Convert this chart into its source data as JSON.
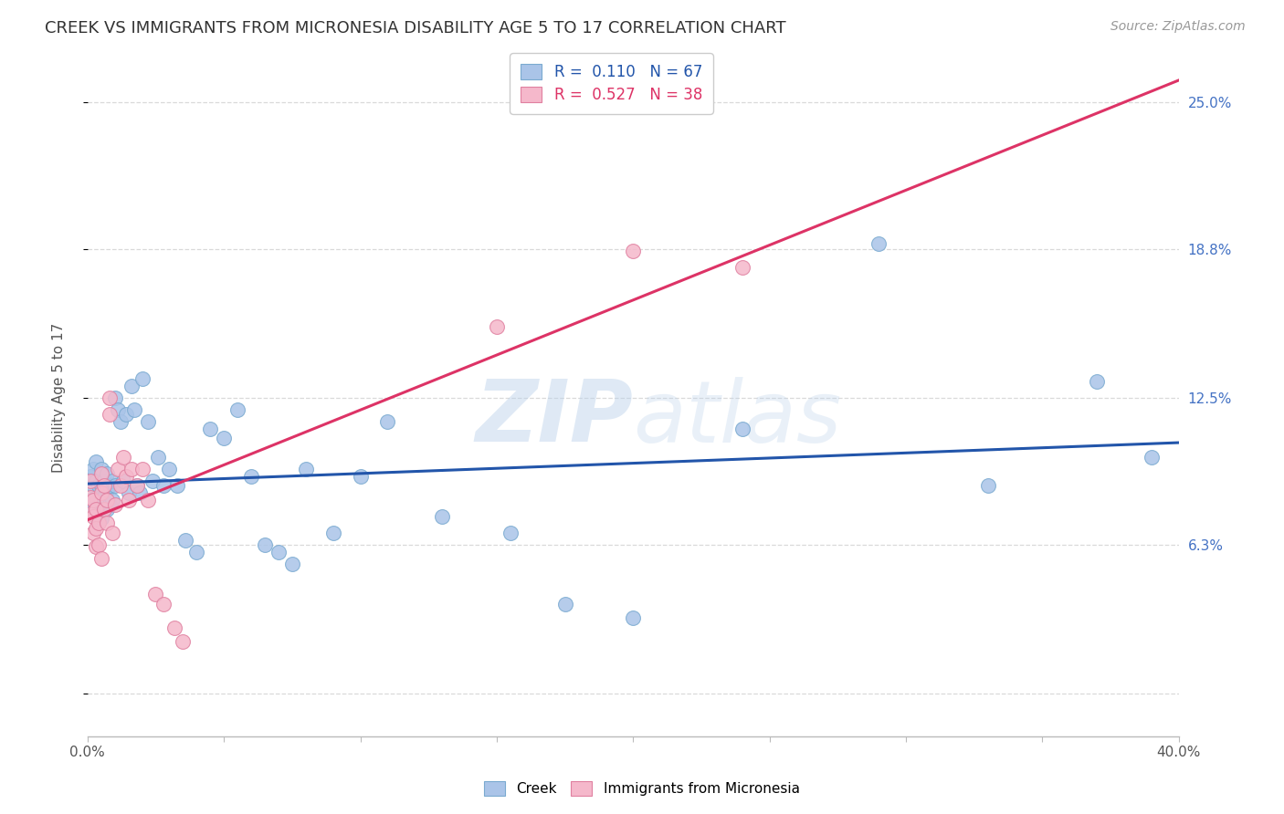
{
  "title": "CREEK VS IMMIGRANTS FROM MICRONESIA DISABILITY AGE 5 TO 17 CORRELATION CHART",
  "source_text": "Source: ZipAtlas.com",
  "ylabel": "Disability Age 5 to 17",
  "watermark": "ZIPatlas",
  "background_color": "#ffffff",
  "grid_color": "#d0d0d0",
  "title_color": "#333333",
  "creek_color": "#aac4e8",
  "creek_edge_color": "#7aaad0",
  "micronesia_color": "#f5b8cb",
  "micronesia_edge_color": "#e080a0",
  "creek_line_color": "#2255aa",
  "micronesia_line_color": "#dd3366",
  "right_tick_color": "#4472c4",
  "ytick_vals": [
    0.0,
    0.063,
    0.125,
    0.188,
    0.25
  ],
  "ytick_labels": [
    "",
    "6.3%",
    "12.5%",
    "18.8%",
    "25.0%"
  ],
  "xlim": [
    0.0,
    0.4
  ],
  "ylim": [
    -0.018,
    0.268
  ],
  "creek_x": [
    0.001,
    0.001,
    0.001,
    0.002,
    0.002,
    0.002,
    0.002,
    0.003,
    0.003,
    0.003,
    0.003,
    0.004,
    0.004,
    0.004,
    0.005,
    0.005,
    0.005,
    0.005,
    0.006,
    0.006,
    0.007,
    0.007,
    0.007,
    0.008,
    0.008,
    0.009,
    0.009,
    0.01,
    0.01,
    0.011,
    0.012,
    0.013,
    0.014,
    0.015,
    0.016,
    0.017,
    0.018,
    0.019,
    0.02,
    0.022,
    0.024,
    0.026,
    0.028,
    0.03,
    0.033,
    0.036,
    0.04,
    0.045,
    0.05,
    0.055,
    0.06,
    0.065,
    0.07,
    0.075,
    0.08,
    0.09,
    0.1,
    0.11,
    0.13,
    0.155,
    0.175,
    0.2,
    0.24,
    0.29,
    0.33,
    0.37,
    0.39
  ],
  "creek_y": [
    0.092,
    0.082,
    0.078,
    0.095,
    0.088,
    0.082,
    0.076,
    0.098,
    0.09,
    0.083,
    0.075,
    0.088,
    0.08,
    0.073,
    0.095,
    0.088,
    0.081,
    0.074,
    0.09,
    0.083,
    0.093,
    0.086,
    0.078,
    0.088,
    0.08,
    0.09,
    0.082,
    0.125,
    0.088,
    0.12,
    0.115,
    0.09,
    0.118,
    0.085,
    0.13,
    0.12,
    0.088,
    0.085,
    0.133,
    0.115,
    0.09,
    0.1,
    0.088,
    0.095,
    0.088,
    0.065,
    0.06,
    0.112,
    0.108,
    0.12,
    0.092,
    0.063,
    0.06,
    0.055,
    0.095,
    0.068,
    0.092,
    0.115,
    0.075,
    0.068,
    0.038,
    0.032,
    0.112,
    0.19,
    0.088,
    0.132,
    0.1
  ],
  "micronesia_x": [
    0.001,
    0.001,
    0.001,
    0.002,
    0.002,
    0.002,
    0.003,
    0.003,
    0.003,
    0.004,
    0.004,
    0.005,
    0.005,
    0.005,
    0.006,
    0.006,
    0.007,
    0.007,
    0.008,
    0.008,
    0.009,
    0.01,
    0.011,
    0.012,
    0.013,
    0.014,
    0.015,
    0.016,
    0.018,
    0.02,
    0.022,
    0.025,
    0.028,
    0.032,
    0.035,
    0.15,
    0.2,
    0.24
  ],
  "micronesia_y": [
    0.09,
    0.083,
    0.076,
    0.082,
    0.075,
    0.068,
    0.078,
    0.07,
    0.062,
    0.072,
    0.063,
    0.093,
    0.085,
    0.057,
    0.088,
    0.078,
    0.082,
    0.072,
    0.125,
    0.118,
    0.068,
    0.08,
    0.095,
    0.088,
    0.1,
    0.092,
    0.082,
    0.095,
    0.088,
    0.095,
    0.082,
    0.042,
    0.038,
    0.028,
    0.022,
    0.155,
    0.187,
    0.18
  ]
}
